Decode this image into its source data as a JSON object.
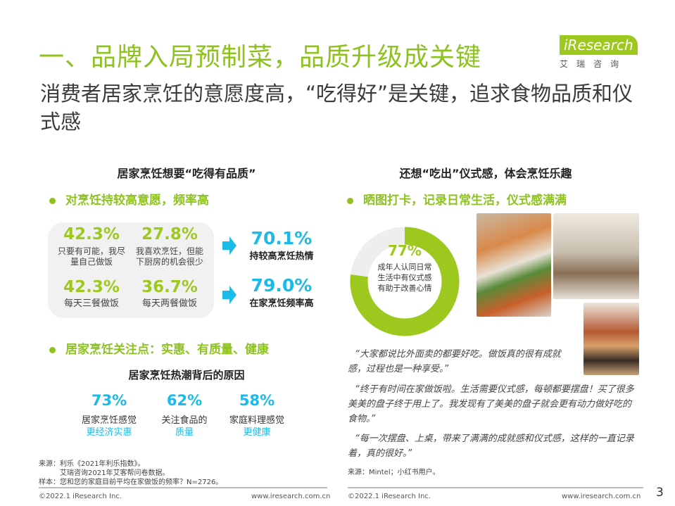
{
  "title": "一、品牌入局预制菜，品质升级成关键",
  "subtitle": "消费者居家烹饪的意愿度高，“吃得好”是关键，追求食物品质和仪式感",
  "logo": {
    "brand": "iResearch",
    "cn": "艾瑞咨询"
  },
  "left": {
    "heading": "居家烹饪想要“吃得有品质”",
    "bullet1": "对烹饪持较高意愿，频率高",
    "stats": [
      {
        "value": "42.3%",
        "label": "只要有可能，我尽量自己做饭"
      },
      {
        "value": "27.8%",
        "label": "我喜欢烹饪，但能下厨房的机会很少"
      },
      {
        "value": "42.3%",
        "label": "每天三餐做饭"
      },
      {
        "value": "36.7%",
        "label": "每天两餐做饭"
      }
    ],
    "results": [
      {
        "value": "70.1%",
        "label": "持较高烹饪热情"
      },
      {
        "value": "79.0%",
        "label": "在家烹饪频率高"
      }
    ],
    "bullet2": "居家烹饪关注点：实惠、有质量、健康",
    "reasons_heading": "居家烹饪热潮背后的原因",
    "reasons": [
      {
        "value": "73%",
        "label": "居家烹饪感觉",
        "highlight": "更经济实惠"
      },
      {
        "value": "62%",
        "label": "关注食品的",
        "highlight": "质量"
      },
      {
        "value": "58%",
        "label": "家庭料理感觉",
        "highlight": "更健康"
      }
    ],
    "source": [
      "来源：利乐《2021年利乐指数》。",
      "艾瑞咨询2021年艾客帮问卷数据。",
      "样本：您和您的家庭目前平均在家做饭的频率？N=2726。"
    ],
    "footer_left": "©2022.1 iResearch Inc.",
    "footer_right": "www.iresearch.com.cn"
  },
  "right": {
    "heading": "还想“吃出”仪式感，体会烹饪乐趣",
    "bullet": "晒图打卡，记录日常生活，仪式感满满",
    "donut": {
      "value": "77%",
      "percent": 77,
      "label": "成年人认同日常生活中有仪式感有助于改善心情"
    },
    "quotes": [
      "“大家都说比外面卖的都要好吃。做饭真的很有成就感，过程也是一种享受。”",
      "“终于有时间在家做饭啦。生活需要仪式感，每顿都要摆盘！买了很多美美的盘子终于用上了。我发现有了美美的盘子就会更有动力做好吃的食物。”",
      "“每一次摆盘、上桌，带来了满满的成就感和仪式感，这样的一直记录着，真的很好。”"
    ],
    "source": "来源：Mintel；小红书用户。",
    "footer_left": "©2022.1 iResearch Inc.",
    "footer_right": "www.iresearch.com.cn"
  },
  "page_number": "3",
  "colors": {
    "green": "#8dc21f",
    "blue": "#1bbbe9"
  }
}
